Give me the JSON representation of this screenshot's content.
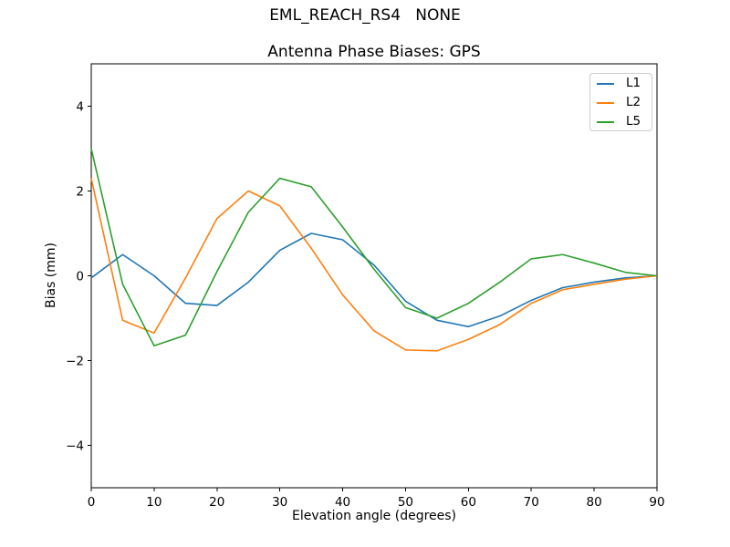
{
  "figure_title": "EML_REACH_RS4   NONE",
  "chart_data": {
    "type": "line",
    "title": "Antenna Phase Biases: GPS",
    "xlabel": "Elevation angle (degrees)",
    "ylabel": "Bias (mm)",
    "xlim": [
      0,
      90
    ],
    "ylim": [
      -5,
      5
    ],
    "xticks": [
      0,
      10,
      20,
      30,
      40,
      50,
      60,
      70,
      80,
      90
    ],
    "yticks": [
      -4,
      -2,
      0,
      2,
      4
    ],
    "grid": false,
    "legend": {
      "position": "upper right",
      "labels": [
        "L1",
        "L2",
        "L5"
      ]
    },
    "x": [
      0,
      5,
      10,
      15,
      20,
      25,
      30,
      35,
      40,
      45,
      50,
      55,
      60,
      65,
      70,
      75,
      80,
      85,
      90
    ],
    "series": [
      {
        "name": "L1",
        "color": "#1f77b4",
        "values": [
          -0.05,
          0.5,
          0.0,
          -0.65,
          -0.7,
          -0.15,
          0.6,
          1.0,
          0.85,
          0.25,
          -0.6,
          -1.05,
          -1.2,
          -0.95,
          -0.58,
          -0.28,
          -0.15,
          -0.05,
          0.0
        ]
      },
      {
        "name": "L2",
        "color": "#ff7f0e",
        "values": [
          2.3,
          -1.05,
          -1.35,
          -0.05,
          1.35,
          2.0,
          1.65,
          0.65,
          -0.45,
          -1.3,
          -1.75,
          -1.77,
          -1.5,
          -1.15,
          -0.65,
          -0.33,
          -0.2,
          -0.08,
          0.0
        ]
      },
      {
        "name": "L5",
        "color": "#2ca02c",
        "values": [
          3.0,
          -0.2,
          -1.65,
          -1.4,
          0.1,
          1.5,
          2.3,
          2.1,
          1.15,
          0.15,
          -0.75,
          -1.0,
          -0.65,
          -0.15,
          0.4,
          0.5,
          0.3,
          0.08,
          0.0
        ]
      }
    ]
  }
}
